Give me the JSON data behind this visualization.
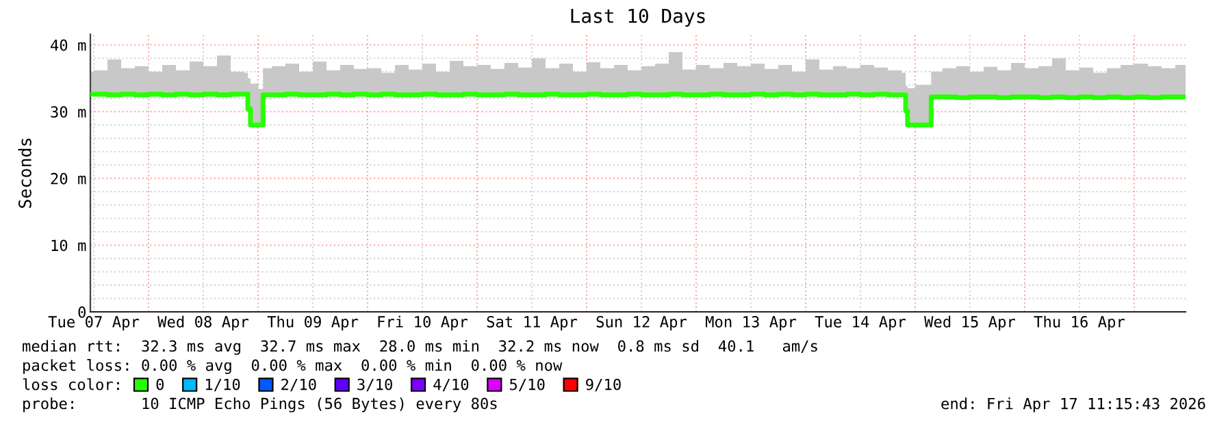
{
  "chart_data": {
    "type": "step",
    "title": "Last 10 Days",
    "ylabel": "Seconds",
    "legend_title": "loss color:",
    "legend": "bottom",
    "grid": true,
    "xlim": [
      "2026-04-07T11:15",
      "2026-04-17T11:15"
    ],
    "xticks": [
      {
        "value": "2026-04-07T12:00",
        "label": "Tue 07 Apr"
      },
      {
        "value": "2026-04-08T00:00",
        "label": null
      },
      {
        "value": "2026-04-08T12:00",
        "label": "Wed 08 Apr"
      },
      {
        "value": "2026-04-09T00:00",
        "label": null
      },
      {
        "value": "2026-04-09T12:00",
        "label": "Thu 09 Apr"
      },
      {
        "value": "2026-04-10T00:00",
        "label": null
      },
      {
        "value": "2026-04-10T12:00",
        "label": "Fri 10 Apr"
      },
      {
        "value": "2026-04-11T00:00",
        "label": null
      },
      {
        "value": "2026-04-11T12:00",
        "label": "Sat 11 Apr"
      },
      {
        "value": "2026-04-12T00:00",
        "label": null
      },
      {
        "value": "2026-04-12T12:00",
        "label": "Sun 12 Apr"
      },
      {
        "value": "2026-04-13T00:00",
        "label": null
      },
      {
        "value": "2026-04-13T12:00",
        "label": "Mon 13 Apr"
      },
      {
        "value": "2026-04-14T00:00",
        "label": null
      },
      {
        "value": "2026-04-14T12:00",
        "label": "Tue 14 Apr"
      },
      {
        "value": "2026-04-15T00:00",
        "label": null
      },
      {
        "value": "2026-04-15T12:00",
        "label": "Wed 15 Apr"
      },
      {
        "value": "2026-04-16T00:00",
        "label": null
      },
      {
        "value": "2026-04-16T12:00",
        "label": "Thu 16 Apr"
      },
      {
        "value": "2026-04-17T00:00",
        "label": null
      }
    ],
    "ylim": [
      0,
      41.6
    ],
    "yticks": [
      0,
      {
        "value": 2,
        "label": null
      },
      {
        "value": 4,
        "label": null
      },
      {
        "value": 6,
        "label": null
      },
      {
        "value": 8,
        "label": null
      },
      {
        "value": 10,
        "label": "10 m"
      },
      {
        "value": 12,
        "label": null
      },
      {
        "value": 14,
        "label": null
      },
      {
        "value": 16,
        "label": null
      },
      {
        "value": 18,
        "label": null
      },
      {
        "value": 20,
        "label": "20 m"
      },
      {
        "value": 22,
        "label": null
      },
      {
        "value": 24,
        "label": null
      },
      {
        "value": 26,
        "label": null
      },
      {
        "value": 28,
        "label": null
      },
      {
        "value": 30,
        "label": "30 m"
      },
      {
        "value": 32,
        "label": null
      },
      {
        "value": 34,
        "label": null
      },
      {
        "value": 36,
        "label": null
      },
      {
        "value": 38,
        "label": null
      },
      {
        "value": 40,
        "label": "40 m"
      }
    ],
    "annotations": [
      "median rtt:  32.3 ms avg  32.7 ms max  28.0 ms min  32.2 ms now  0.8 ms sd  40.1   am/s",
      "packet loss: 0.00 % avg  0.00 % max  0.00 % min  0.00 % now",
      "probe:       10 ICMP Echo Pings (56 Bytes) every 80s",
      "end: Fri Apr 17 11:15:43 2026"
    ],
    "series": [
      {
        "name": "0",
        "color": "#26ff00",
        "x": [
          "2026-04-07T11:15",
          "2026-04-07T12:00",
          "2026-04-07T15:00",
          "2026-04-07T18:00",
          "2026-04-07T21:00",
          "2026-04-08T00:00",
          "2026-04-08T03:00",
          "2026-04-08T06:00",
          "2026-04-08T09:00",
          "2026-04-08T12:00",
          "2026-04-08T15:00",
          "2026-04-08T18:00",
          "2026-04-08T21:00",
          "2026-04-08T21:45",
          "2026-04-08T22:20",
          "2026-04-09T00:00",
          "2026-04-09T01:05",
          "2026-04-09T03:00",
          "2026-04-09T06:00",
          "2026-04-09T09:00",
          "2026-04-09T12:00",
          "2026-04-09T15:00",
          "2026-04-09T18:00",
          "2026-04-09T21:00",
          "2026-04-10T00:00",
          "2026-04-10T03:00",
          "2026-04-10T06:00",
          "2026-04-10T09:00",
          "2026-04-10T12:00",
          "2026-04-10T15:00",
          "2026-04-10T18:00",
          "2026-04-10T21:00",
          "2026-04-11T00:00",
          "2026-04-11T03:00",
          "2026-04-11T06:00",
          "2026-04-11T09:00",
          "2026-04-11T12:00",
          "2026-04-11T15:00",
          "2026-04-11T18:00",
          "2026-04-11T21:00",
          "2026-04-12T00:00",
          "2026-04-12T03:00",
          "2026-04-12T06:00",
          "2026-04-12T09:00",
          "2026-04-12T12:00",
          "2026-04-12T15:00",
          "2026-04-12T18:00",
          "2026-04-12T21:00",
          "2026-04-13T00:00",
          "2026-04-13T03:00",
          "2026-04-13T06:00",
          "2026-04-13T09:00",
          "2026-04-13T12:00",
          "2026-04-13T15:00",
          "2026-04-13T18:00",
          "2026-04-13T21:00",
          "2026-04-14T00:00",
          "2026-04-14T03:00",
          "2026-04-14T06:00",
          "2026-04-14T09:00",
          "2026-04-14T12:00",
          "2026-04-14T15:00",
          "2026-04-14T18:00",
          "2026-04-14T21:00",
          "2026-04-14T21:55",
          "2026-04-14T22:20",
          "2026-04-15T00:00",
          "2026-04-15T03:30",
          "2026-04-15T06:00",
          "2026-04-15T09:00",
          "2026-04-15T12:00",
          "2026-04-15T15:00",
          "2026-04-15T18:00",
          "2026-04-15T21:00",
          "2026-04-16T00:00",
          "2026-04-16T03:00",
          "2026-04-16T06:00",
          "2026-04-16T09:00",
          "2026-04-16T12:00",
          "2026-04-16T15:00",
          "2026-04-16T18:00",
          "2026-04-16T21:00",
          "2026-04-17T00:00",
          "2026-04-17T03:00",
          "2026-04-17T06:00",
          "2026-04-17T09:00",
          "2026-04-17T11:15"
        ],
        "values": [
          32.6,
          32.6,
          32.5,
          32.6,
          32.5,
          32.6,
          32.5,
          32.6,
          32.5,
          32.6,
          32.5,
          32.6,
          32.6,
          30.4,
          28.0,
          28.0,
          32.5,
          32.5,
          32.6,
          32.5,
          32.5,
          32.6,
          32.5,
          32.6,
          32.5,
          32.6,
          32.5,
          32.5,
          32.6,
          32.5,
          32.5,
          32.6,
          32.5,
          32.5,
          32.6,
          32.5,
          32.5,
          32.6,
          32.5,
          32.5,
          32.6,
          32.5,
          32.5,
          32.6,
          32.5,
          32.5,
          32.6,
          32.5,
          32.5,
          32.6,
          32.5,
          32.5,
          32.6,
          32.5,
          32.6,
          32.5,
          32.6,
          32.5,
          32.5,
          32.6,
          32.5,
          32.6,
          32.5,
          32.5,
          30.1,
          28.0,
          28.0,
          32.2,
          32.2,
          32.1,
          32.2,
          32.2,
          32.1,
          32.2,
          32.2,
          32.1,
          32.2,
          32.1,
          32.2,
          32.1,
          32.2,
          32.1,
          32.2,
          32.1,
          32.2,
          32.2,
          32.2
        ],
        "lower": [
          32.3,
          32.3,
          32.2,
          32.3,
          32.2,
          32.3,
          32.2,
          32.3,
          32.2,
          32.3,
          32.2,
          32.3,
          32.3,
          30.0,
          27.8,
          27.8,
          32.2,
          32.2,
          32.3,
          32.2,
          32.2,
          32.3,
          32.2,
          32.3,
          32.2,
          32.3,
          32.2,
          32.2,
          32.3,
          32.2,
          32.2,
          32.3,
          32.2,
          32.2,
          32.3,
          32.2,
          32.2,
          32.3,
          32.2,
          32.2,
          32.3,
          32.2,
          32.2,
          32.3,
          32.2,
          32.2,
          32.3,
          32.2,
          32.2,
          32.3,
          32.2,
          32.2,
          32.3,
          32.2,
          32.3,
          32.2,
          32.3,
          32.2,
          32.2,
          32.3,
          32.2,
          32.3,
          32.2,
          32.2,
          29.8,
          27.8,
          27.8,
          31.9,
          31.9,
          31.8,
          31.9,
          31.9,
          31.8,
          31.9,
          31.9,
          31.8,
          31.9,
          31.8,
          31.9,
          31.8,
          31.9,
          31.8,
          31.9,
          31.8,
          31.9,
          31.9,
          31.9
        ],
        "upper": [
          36.0,
          36.2,
          37.8,
          36.5,
          36.8,
          36.0,
          37.0,
          36.2,
          37.5,
          36.8,
          38.4,
          36.0,
          35.8,
          35.0,
          34.2,
          33.4,
          36.5,
          36.8,
          37.2,
          36.0,
          37.5,
          36.2,
          37.0,
          36.4,
          36.5,
          35.8,
          37.0,
          36.3,
          37.2,
          36.0,
          37.6,
          36.8,
          37.0,
          36.4,
          37.3,
          36.6,
          38.0,
          36.5,
          37.2,
          36.0,
          37.4,
          36.5,
          37.0,
          36.2,
          36.8,
          37.2,
          38.9,
          36.3,
          37.0,
          36.5,
          37.3,
          36.8,
          37.2,
          36.4,
          37.0,
          36.0,
          37.8,
          36.3,
          36.8,
          36.5,
          37.0,
          36.6,
          36.2,
          35.8,
          33.8,
          33.5,
          34.0,
          36.0,
          36.5,
          36.8,
          36.0,
          36.7,
          36.2,
          37.3,
          36.5,
          36.8,
          38.0,
          36.2,
          36.6,
          35.8,
          36.5,
          37.0,
          37.2,
          36.8,
          36.5,
          37.0,
          37.0
        ]
      },
      {
        "name": "1/10",
        "color": "#00b8ff"
      },
      {
        "name": "2/10",
        "color": "#0059ff"
      },
      {
        "name": "3/10",
        "color": "#5e00ff"
      },
      {
        "name": "4/10",
        "color": "#7e00ff"
      },
      {
        "name": "5/10",
        "color": "#dd00ff"
      },
      {
        "name": "9/10",
        "color": "#ff0000"
      }
    ]
  }
}
